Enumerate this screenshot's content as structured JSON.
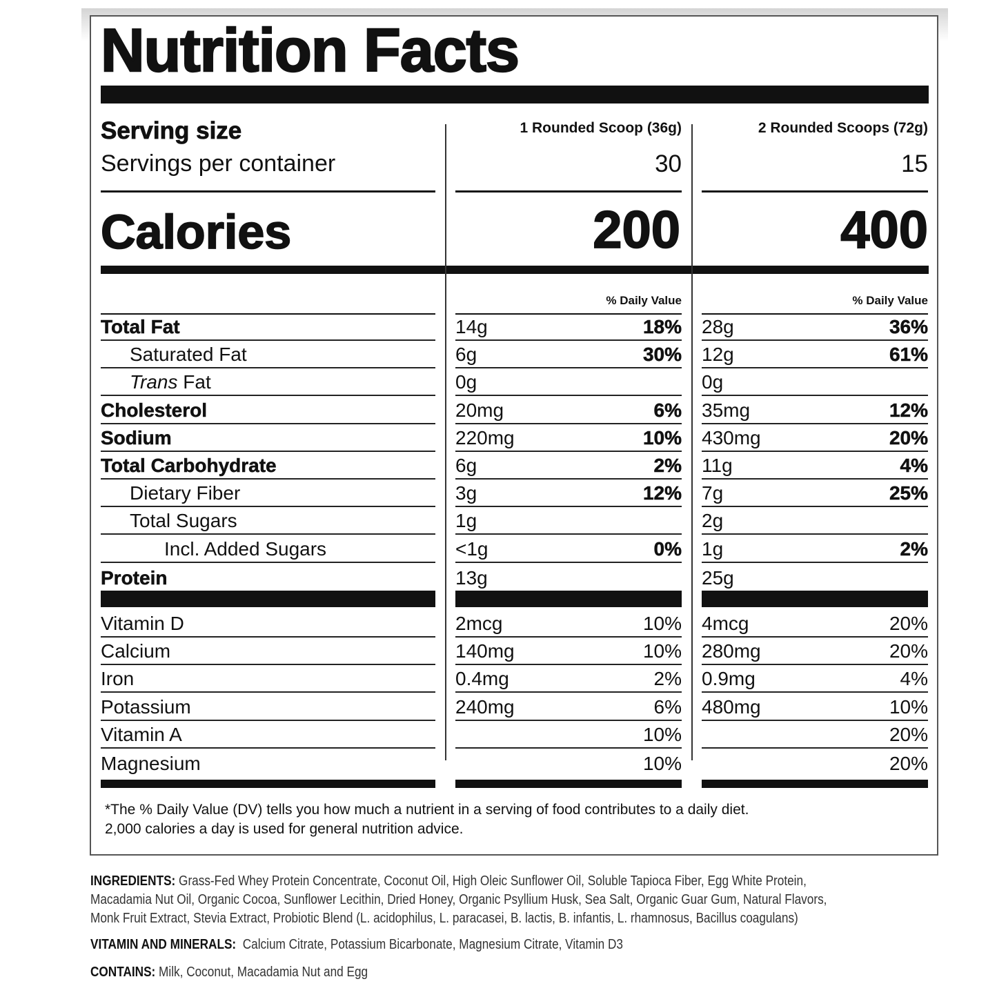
{
  "title": "Nutrition Facts",
  "serving": {
    "size_label": "Serving size",
    "per_container_label": "Servings per container",
    "col1_size": "1 Rounded Scoop (36g)",
    "col2_size": "2 Rounded Scoops (72g)",
    "col1_servings": "30",
    "col2_servings": "15"
  },
  "calories": {
    "label": "Calories",
    "col1": "200",
    "col2": "400"
  },
  "dv_header": "% Daily Value",
  "nutrients": [
    {
      "label": "Total Fat",
      "c1_amt": "14g",
      "c1_dv": "18%",
      "c2_amt": "28g",
      "c2_dv": "36%"
    },
    {
      "label": "Saturated Fat",
      "c1_amt": "6g",
      "c1_dv": "30%",
      "c2_amt": "12g",
      "c2_dv": "61%"
    },
    {
      "label_italic": "Trans",
      "label": " Fat",
      "c1_amt": "0g",
      "c1_dv": "",
      "c2_amt": "0g",
      "c2_dv": ""
    },
    {
      "label": "Cholesterol",
      "c1_amt": "20mg",
      "c1_dv": "6%",
      "c2_amt": "35mg",
      "c2_dv": "12%"
    },
    {
      "label": "Sodium",
      "c1_amt": "220mg",
      "c1_dv": "10%",
      "c2_amt": "430mg",
      "c2_dv": "20%"
    },
    {
      "label": "Total Carbohydrate",
      "c1_amt": "6g",
      "c1_dv": "2%",
      "c2_amt": "11g",
      "c2_dv": "4%"
    },
    {
      "label": "Dietary Fiber",
      "c1_amt": "3g",
      "c1_dv": "12%",
      "c2_amt": "7g",
      "c2_dv": "25%"
    },
    {
      "label": "Total Sugars",
      "c1_amt": "1g",
      "c1_dv": "",
      "c2_amt": "2g",
      "c2_dv": ""
    },
    {
      "label": "Incl. Added Sugars",
      "c1_amt": "<1g",
      "c1_dv": "0%",
      "c2_amt": "1g",
      "c2_dv": "2%"
    },
    {
      "label": "Protein",
      "c1_amt": "13g",
      "c1_dv": "",
      "c2_amt": "25g",
      "c2_dv": ""
    }
  ],
  "micronutrients": [
    {
      "label": "Vitamin D",
      "c1_amt": "2mcg",
      "c1_dv": "10%",
      "c2_amt": "4mcg",
      "c2_dv": "20%"
    },
    {
      "label": "Calcium",
      "c1_amt": "140mg",
      "c1_dv": "10%",
      "c2_amt": "280mg",
      "c2_dv": "20%"
    },
    {
      "label": "Iron",
      "c1_amt": "0.4mg",
      "c1_dv": "2%",
      "c2_amt": "0.9mg",
      "c2_dv": "4%"
    },
    {
      "label": "Potassium",
      "c1_amt": "240mg",
      "c1_dv": "6%",
      "c2_amt": "480mg",
      "c2_dv": "10%"
    },
    {
      "label": "Vitamin A",
      "c1_amt": "",
      "c1_dv": "10%",
      "c2_amt": "",
      "c2_dv": "20%"
    },
    {
      "label": "Magnesium",
      "c1_amt": "",
      "c1_dv": "10%",
      "c2_amt": "",
      "c2_dv": "20%"
    }
  ],
  "footnote": {
    "line1": "*The % Daily Value (DV) tells you how much a nutrient in a serving of food contributes to a daily diet.",
    "line2": "2,000 calories a day is used for general nutrition advice."
  },
  "ingredients": {
    "label": "INGREDIENTS:",
    "line1": "Grass-Fed Whey Protein Concentrate, Coconut Oil, High Oleic Sunflower Oil, Soluble Tapioca Fiber, Egg White Protein,",
    "line2": "Macadamia Nut Oil, Organic Cocoa, Sunflower Lecithin, Dried Honey, Organic Psyllium Husk, Sea Salt, Organic Guar Gum, Natural Flavors,",
    "line3": "Monk Fruit Extract, Stevia Extract, Probiotic Blend (L. acidophilus, L. paracasei, B. lactis, B. infantis, L. rhamnosus, Bacillus coagulans)"
  },
  "vitamins_minerals": {
    "label": "VITAMIN AND MINERALS:",
    "text": "Calcium Citrate, Potassium Bicarbonate, Magnesium Citrate, Vitamin D3"
  },
  "contains": {
    "label": "CONTAINS:",
    "text": "Milk, Coconut, Macadamia Nut and Egg"
  }
}
